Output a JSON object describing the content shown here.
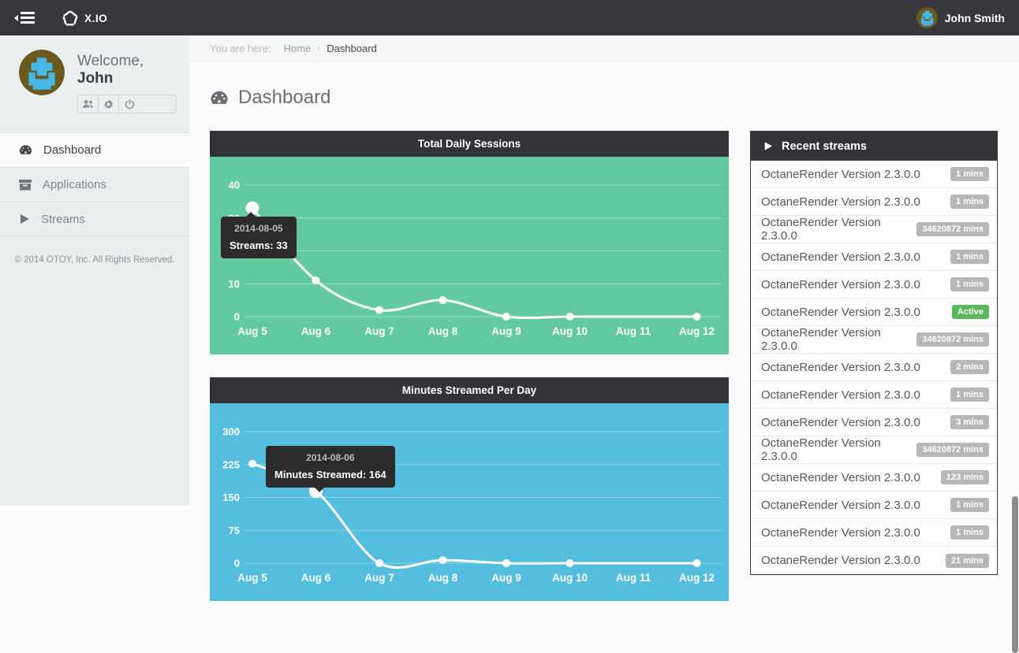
{
  "topbar": {
    "brand": "X.IO",
    "user_name": "John Smith"
  },
  "sidebar": {
    "welcome_prefix": "Welcome,",
    "welcome_name": "John",
    "menu": [
      {
        "label": "Dashboard",
        "icon": "dashboard-icon",
        "active": true
      },
      {
        "label": "Applications",
        "icon": "applications-icon",
        "active": false
      },
      {
        "label": "Streams",
        "icon": "streams-icon",
        "active": false
      }
    ],
    "copyright": "© 2014 OTOY, Inc. All Rights Reserved."
  },
  "breadcrumb": {
    "prefix": "You are here:",
    "home": "Home",
    "current": "Dashboard"
  },
  "page": {
    "title": "Dashboard"
  },
  "chart_data": [
    {
      "type": "line",
      "title": "Total Daily Sessions",
      "categories": [
        "Aug 5",
        "Aug 6",
        "Aug 7",
        "Aug 8",
        "Aug 9",
        "Aug 10",
        "Aug 11",
        "Aug 12"
      ],
      "values": [
        33,
        11,
        2,
        5,
        0,
        0,
        0,
        0
      ],
      "yticks": [
        0,
        10,
        20,
        30,
        40
      ],
      "ylim": [
        0,
        40
      ],
      "grid": true,
      "legend": "none",
      "bg_color": "#63c9a0",
      "line_color": "#ffffff",
      "highlight_index": 0,
      "dotless_indices": [
        6
      ],
      "tooltip": {
        "title": "2014-08-05",
        "label": "Streams: 33"
      }
    },
    {
      "type": "line",
      "title": "Minutes Streamed Per Day",
      "categories": [
        "Aug 5",
        "Aug 6",
        "Aug 7",
        "Aug 8",
        "Aug 9",
        "Aug 10",
        "Aug 11",
        "Aug 12"
      ],
      "values": [
        227,
        164,
        0,
        7,
        0,
        0,
        0,
        0
      ],
      "yticks": [
        0,
        75,
        150,
        225,
        300
      ],
      "ylim": [
        0,
        300
      ],
      "grid": true,
      "legend": "none",
      "bg_color": "#55bede",
      "line_color": "#ffffff",
      "highlight_index": 1,
      "dotless_indices": [
        6
      ],
      "tooltip": {
        "title": "2014-08-06",
        "label": "Minutes Streamed: 164"
      }
    }
  ],
  "recent": {
    "title": "Recent streams",
    "rows": [
      {
        "name": "OctaneRender Version 2.3.0.0",
        "badge": "1 mins",
        "badge_type": "gray"
      },
      {
        "name": "OctaneRender Version 2.3.0.0",
        "badge": "1 mins",
        "badge_type": "gray"
      },
      {
        "name": "OctaneRender Version 2.3.0.0",
        "badge": "34620872 mins",
        "badge_type": "gray"
      },
      {
        "name": "OctaneRender Version 2.3.0.0",
        "badge": "1 mins",
        "badge_type": "gray"
      },
      {
        "name": "OctaneRender Version 2.3.0.0",
        "badge": "1 mins",
        "badge_type": "gray"
      },
      {
        "name": "OctaneRender Version 2.3.0.0",
        "badge": "Active",
        "badge_type": "active"
      },
      {
        "name": "OctaneRender Version 2.3.0.0",
        "badge": "34620872 mins",
        "badge_type": "gray"
      },
      {
        "name": "OctaneRender Version 2.3.0.0",
        "badge": "2 mins",
        "badge_type": "gray"
      },
      {
        "name": "OctaneRender Version 2.3.0.0",
        "badge": "1 mins",
        "badge_type": "gray"
      },
      {
        "name": "OctaneRender Version 2.3.0.0",
        "badge": "3 mins",
        "badge_type": "gray"
      },
      {
        "name": "OctaneRender Version 2.3.0.0",
        "badge": "34620872 mins",
        "badge_type": "gray"
      },
      {
        "name": "OctaneRender Version 2.3.0.0",
        "badge": "123 mins",
        "badge_type": "gray"
      },
      {
        "name": "OctaneRender Version 2.3.0.0",
        "badge": "1 mins",
        "badge_type": "gray"
      },
      {
        "name": "OctaneRender Version 2.3.0.0",
        "badge": "1 mins",
        "badge_type": "gray"
      },
      {
        "name": "OctaneRender Version 2.3.0.0",
        "badge": "21 mins",
        "badge_type": "gray"
      }
    ]
  },
  "colors": {
    "topbar_bg": "#37373c",
    "panel_header_bg": "#343438",
    "chart1_bg": "#63c9a0",
    "chart2_bg": "#55bede",
    "badge_gray": "#b7b7b7",
    "badge_active": "#5cb85c",
    "sidebar_bg": "#e9edee"
  }
}
